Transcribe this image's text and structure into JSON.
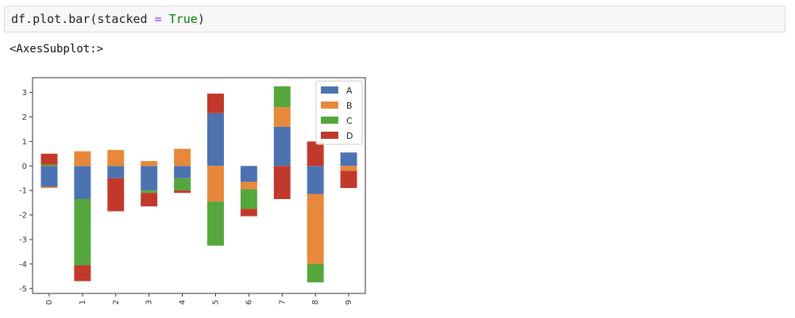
{
  "code": {
    "prefix": "df.plot.bar(stacked ",
    "operator": "=",
    "space": " ",
    "keyword": "True",
    "suffix": ")"
  },
  "output": {
    "text": "<AxesSubplot:>"
  },
  "colors": {
    "A": "#4c72b0",
    "B": "#e8883a",
    "C": "#55a63c",
    "D": "#c0392b"
  },
  "chart_data": {
    "type": "bar",
    "stacked": true,
    "categories": [
      "0",
      "1",
      "2",
      "3",
      "4",
      "5",
      "6",
      "7",
      "8",
      "9"
    ],
    "series": [
      {
        "name": "A",
        "values": [
          -0.85,
          -1.35,
          -0.5,
          -1.0,
          -0.5,
          2.15,
          -0.65,
          1.6,
          -1.15,
          0.55
        ]
      },
      {
        "name": "B",
        "values": [
          -0.05,
          0.6,
          0.65,
          0.2,
          0.7,
          -1.45,
          -0.3,
          0.8,
          -2.85,
          -0.2
        ]
      },
      {
        "name": "C",
        "values": [
          0.05,
          -2.7,
          0.0,
          -0.1,
          -0.5,
          -1.8,
          -0.8,
          0.85,
          -0.75,
          0.0
        ]
      },
      {
        "name": "D",
        "values": [
          0.45,
          -0.65,
          -1.35,
          -0.55,
          -0.1,
          0.8,
          -0.3,
          -1.35,
          1.0,
          -0.7
        ]
      }
    ],
    "yticks": [
      -5,
      -4,
      -3,
      -2,
      -1,
      0,
      1,
      2,
      3
    ],
    "ylim": [
      -5.2,
      3.6
    ],
    "legend_position": "top-right",
    "grid": false
  }
}
